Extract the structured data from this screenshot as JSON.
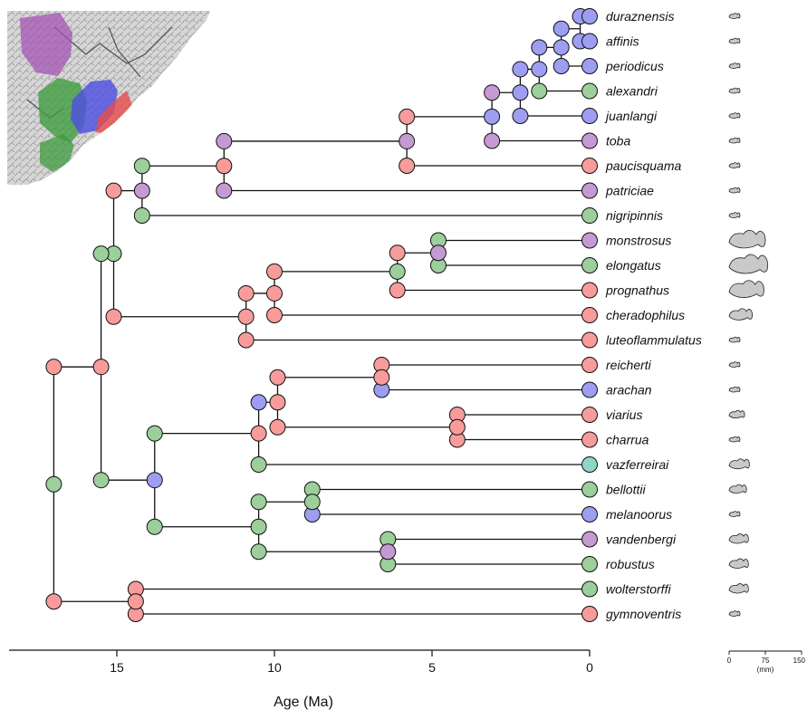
{
  "colors": {
    "red": "#f79b9b",
    "blue": "#9d9df2",
    "green": "#9ccf9b",
    "purple": "#c59ad3",
    "teal": "#8fd6c8",
    "fish": "#c9c9c9"
  },
  "axis": {
    "title": "Age (Ma)",
    "min": 0,
    "max": 18,
    "ticks": [
      {
        "value": 15,
        "label": "15"
      },
      {
        "value": 10,
        "label": "10"
      },
      {
        "value": 5,
        "label": "5"
      },
      {
        "value": 0,
        "label": "0"
      }
    ]
  },
  "size_scale": {
    "ticks": [
      {
        "value": 0,
        "label": "0"
      },
      {
        "value": 75,
        "label": "75"
      },
      {
        "value": 150,
        "label": "150"
      }
    ],
    "unit": "(mm)"
  },
  "taxa": [
    {
      "name": "duraznensis",
      "state": "blue",
      "size": 12
    },
    {
      "name": "affinis",
      "state": "blue",
      "size": 12
    },
    {
      "name": "periodicus",
      "state": "blue",
      "size": 18
    },
    {
      "name": "alexandri",
      "state": "green",
      "size": 18
    },
    {
      "name": "juanlangi",
      "state": "blue",
      "size": 12
    },
    {
      "name": "toba",
      "state": "purple",
      "size": 20
    },
    {
      "name": "paucisquama",
      "state": "red",
      "size": 12
    },
    {
      "name": "patriciae",
      "state": "purple",
      "size": 16
    },
    {
      "name": "nigripinnis",
      "state": "green",
      "size": 12
    },
    {
      "name": "monstrosus",
      "state": "purple",
      "size": 75
    },
    {
      "name": "elongatus",
      "state": "green",
      "size": 80
    },
    {
      "name": "prognathus",
      "state": "red",
      "size": 72
    },
    {
      "name": "cheradophilus",
      "state": "red",
      "size": 48
    },
    {
      "name": "luteoflammulatus",
      "state": "red",
      "size": 20
    },
    {
      "name": "reicherti",
      "state": "red",
      "size": 18
    },
    {
      "name": "arachan",
      "state": "blue",
      "size": 18
    },
    {
      "name": "viarius",
      "state": "red",
      "size": 32
    },
    {
      "name": "charrua",
      "state": "red",
      "size": 18
    },
    {
      "name": "vazferreirai",
      "state": "teal",
      "size": 42
    },
    {
      "name": "bellottii",
      "state": "green",
      "size": 36
    },
    {
      "name": "melanoorus",
      "state": "blue",
      "size": 22
    },
    {
      "name": "vandenbergi",
      "state": "purple",
      "size": 40
    },
    {
      "name": "robustus",
      "state": "green",
      "size": 40
    },
    {
      "name": "wolterstorffi",
      "state": "green",
      "size": 40
    },
    {
      "name": "gymnoventris",
      "state": "red",
      "size": 14
    }
  ],
  "nodes": [
    {
      "age": 0.3,
      "tips": [
        0,
        1
      ],
      "states": [
        "blue",
        "blue"
      ]
    },
    {
      "age": 0.9,
      "tips": [
        0,
        2
      ],
      "states": [
        "blue",
        "blue",
        "blue"
      ]
    },
    {
      "age": 1.6,
      "tips": [
        0,
        3
      ],
      "states": [
        "blue",
        "blue",
        "green"
      ]
    },
    {
      "age": 2.2,
      "tips": [
        0,
        4
      ],
      "states": [
        "blue",
        "blue",
        "blue"
      ]
    },
    {
      "age": 3.1,
      "tips": [
        0,
        5
      ],
      "states": [
        "blue",
        "purple",
        "purple"
      ]
    },
    {
      "age": 5.8,
      "tips": [
        0,
        6
      ],
      "states": [
        "purple",
        "red",
        "red"
      ]
    },
    {
      "age": 11.6,
      "tips": [
        0,
        7
      ],
      "states": [
        "red",
        "purple",
        "purple"
      ]
    },
    {
      "age": 14.2,
      "tips": [
        0,
        8
      ],
      "states": [
        "purple",
        "green",
        "green"
      ]
    },
    {
      "age": 4.8,
      "tips": [
        9,
        10
      ],
      "states": [
        "purple",
        "green",
        "green"
      ]
    },
    {
      "age": 6.1,
      "tips": [
        9,
        11
      ],
      "states": [
        "green",
        "red",
        "red"
      ]
    },
    {
      "age": 10.0,
      "tips": [
        9,
        12
      ],
      "states": [
        "red",
        "red",
        "red"
      ]
    },
    {
      "age": 10.9,
      "tips": [
        9,
        13
      ],
      "states": [
        "red",
        "red",
        "red"
      ]
    },
    {
      "age": 15.1,
      "tips": [
        0,
        13
      ],
      "states": [
        "green",
        "red",
        "red"
      ]
    },
    {
      "age": 6.6,
      "tips": [
        14,
        15
      ],
      "states": [
        "red",
        "red",
        "blue"
      ]
    },
    {
      "age": 4.2,
      "tips": [
        16,
        17
      ],
      "states": [
        "red",
        "red",
        "red"
      ]
    },
    {
      "age": 9.9,
      "tips": [
        14,
        17
      ],
      "states": [
        "red",
        "red",
        "red"
      ]
    },
    {
      "age": 10.5,
      "tips": [
        14,
        18
      ],
      "states": [
        "red",
        "blue",
        "green"
      ]
    },
    {
      "age": 8.8,
      "tips": [
        19,
        20
      ],
      "states": [
        "green",
        "green",
        "blue"
      ]
    },
    {
      "age": 6.4,
      "tips": [
        21,
        22
      ],
      "states": [
        "purple",
        "green",
        "green"
      ]
    },
    {
      "age": 10.5,
      "tips": [
        19,
        22
      ],
      "states": [
        "green",
        "green",
        "green"
      ]
    },
    {
      "age": 13.8,
      "tips": [
        14,
        22
      ],
      "states": [
        "blue",
        "green",
        "green"
      ]
    },
    {
      "age": 15.5,
      "tips": [
        0,
        22
      ],
      "states": [
        "red",
        "green",
        "green"
      ]
    },
    {
      "age": 14.4,
      "tips": [
        23,
        24
      ],
      "states": [
        "red",
        "red",
        "red"
      ]
    },
    {
      "age": 17.0,
      "tips": [
        0,
        24
      ],
      "states": [
        "green",
        "red",
        "red"
      ]
    }
  ]
}
